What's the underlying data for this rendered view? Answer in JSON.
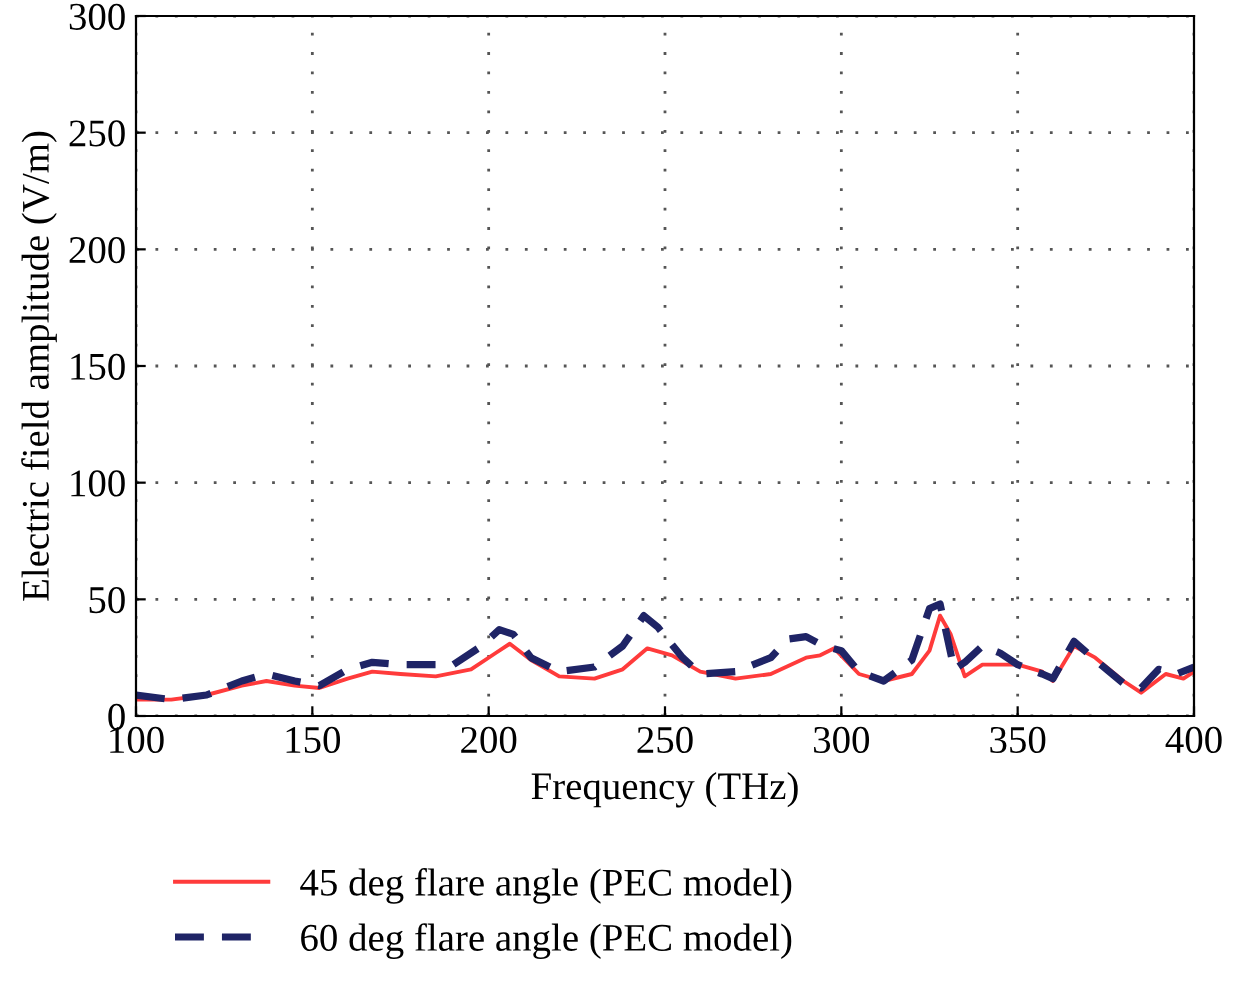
{
  "chart_data": {
    "type": "line",
    "xlabel": "Frequency (THz)",
    "ylabel": "Electric field amplitude (V/m)",
    "xlim": [
      100,
      400
    ],
    "ylim": [
      0,
      300
    ],
    "xticks": [
      100,
      150,
      200,
      250,
      300,
      350,
      400
    ],
    "yticks": [
      0,
      50,
      100,
      150,
      200,
      250,
      300
    ],
    "grid": true,
    "legend": "bottom left",
    "series": [
      {
        "name": "45 deg flare angle (PEC model)",
        "color": "#ff3b3b",
        "line_style": "solid",
        "x": [
          100,
          110,
          120,
          130,
          137,
          145,
          152,
          160,
          167,
          175,
          185,
          195,
          202,
          206,
          212,
          220,
          230,
          238,
          245,
          252,
          260,
          270,
          280,
          290,
          294,
          298,
          305,
          312,
          320,
          325,
          328,
          331,
          335,
          340,
          350,
          357,
          360,
          366,
          372,
          380,
          385,
          392,
          397,
          400
        ],
        "values": [
          7,
          7,
          9,
          13,
          15,
          13,
          12,
          16,
          19,
          18,
          17,
          20,
          27,
          31,
          24,
          17,
          16,
          20,
          29,
          26,
          19,
          16,
          18,
          25,
          26,
          29,
          18,
          15,
          18,
          28,
          43,
          35,
          17,
          22,
          22,
          19,
          15,
          30,
          25,
          15,
          10,
          18,
          16,
          19
        ]
      },
      {
        "name": "60 deg flare angle (PEC model)",
        "color": "#1f2466",
        "line_style": "dashed",
        "x": [
          100,
          110,
          120,
          130,
          137,
          145,
          152,
          160,
          167,
          175,
          190,
          198,
          203,
          207,
          212,
          220,
          230,
          238,
          244,
          248,
          255,
          260,
          270,
          280,
          285,
          290,
          295,
          300,
          305,
          312,
          320,
          325,
          328,
          332,
          335,
          340,
          345,
          350,
          357,
          360,
          366,
          372,
          380,
          385,
          390,
          395,
          400
        ],
        "values": [
          9,
          7,
          9,
          15,
          18,
          15,
          13,
          20,
          23,
          22,
          22,
          30,
          37,
          35,
          25,
          19,
          21,
          30,
          43,
          38,
          25,
          18,
          19,
          25,
          33,
          34,
          30,
          28,
          19,
          15,
          24,
          46,
          48,
          20,
          23,
          30,
          27,
          22,
          18,
          16,
          32,
          24,
          14,
          12,
          20,
          18,
          21
        ]
      }
    ]
  }
}
